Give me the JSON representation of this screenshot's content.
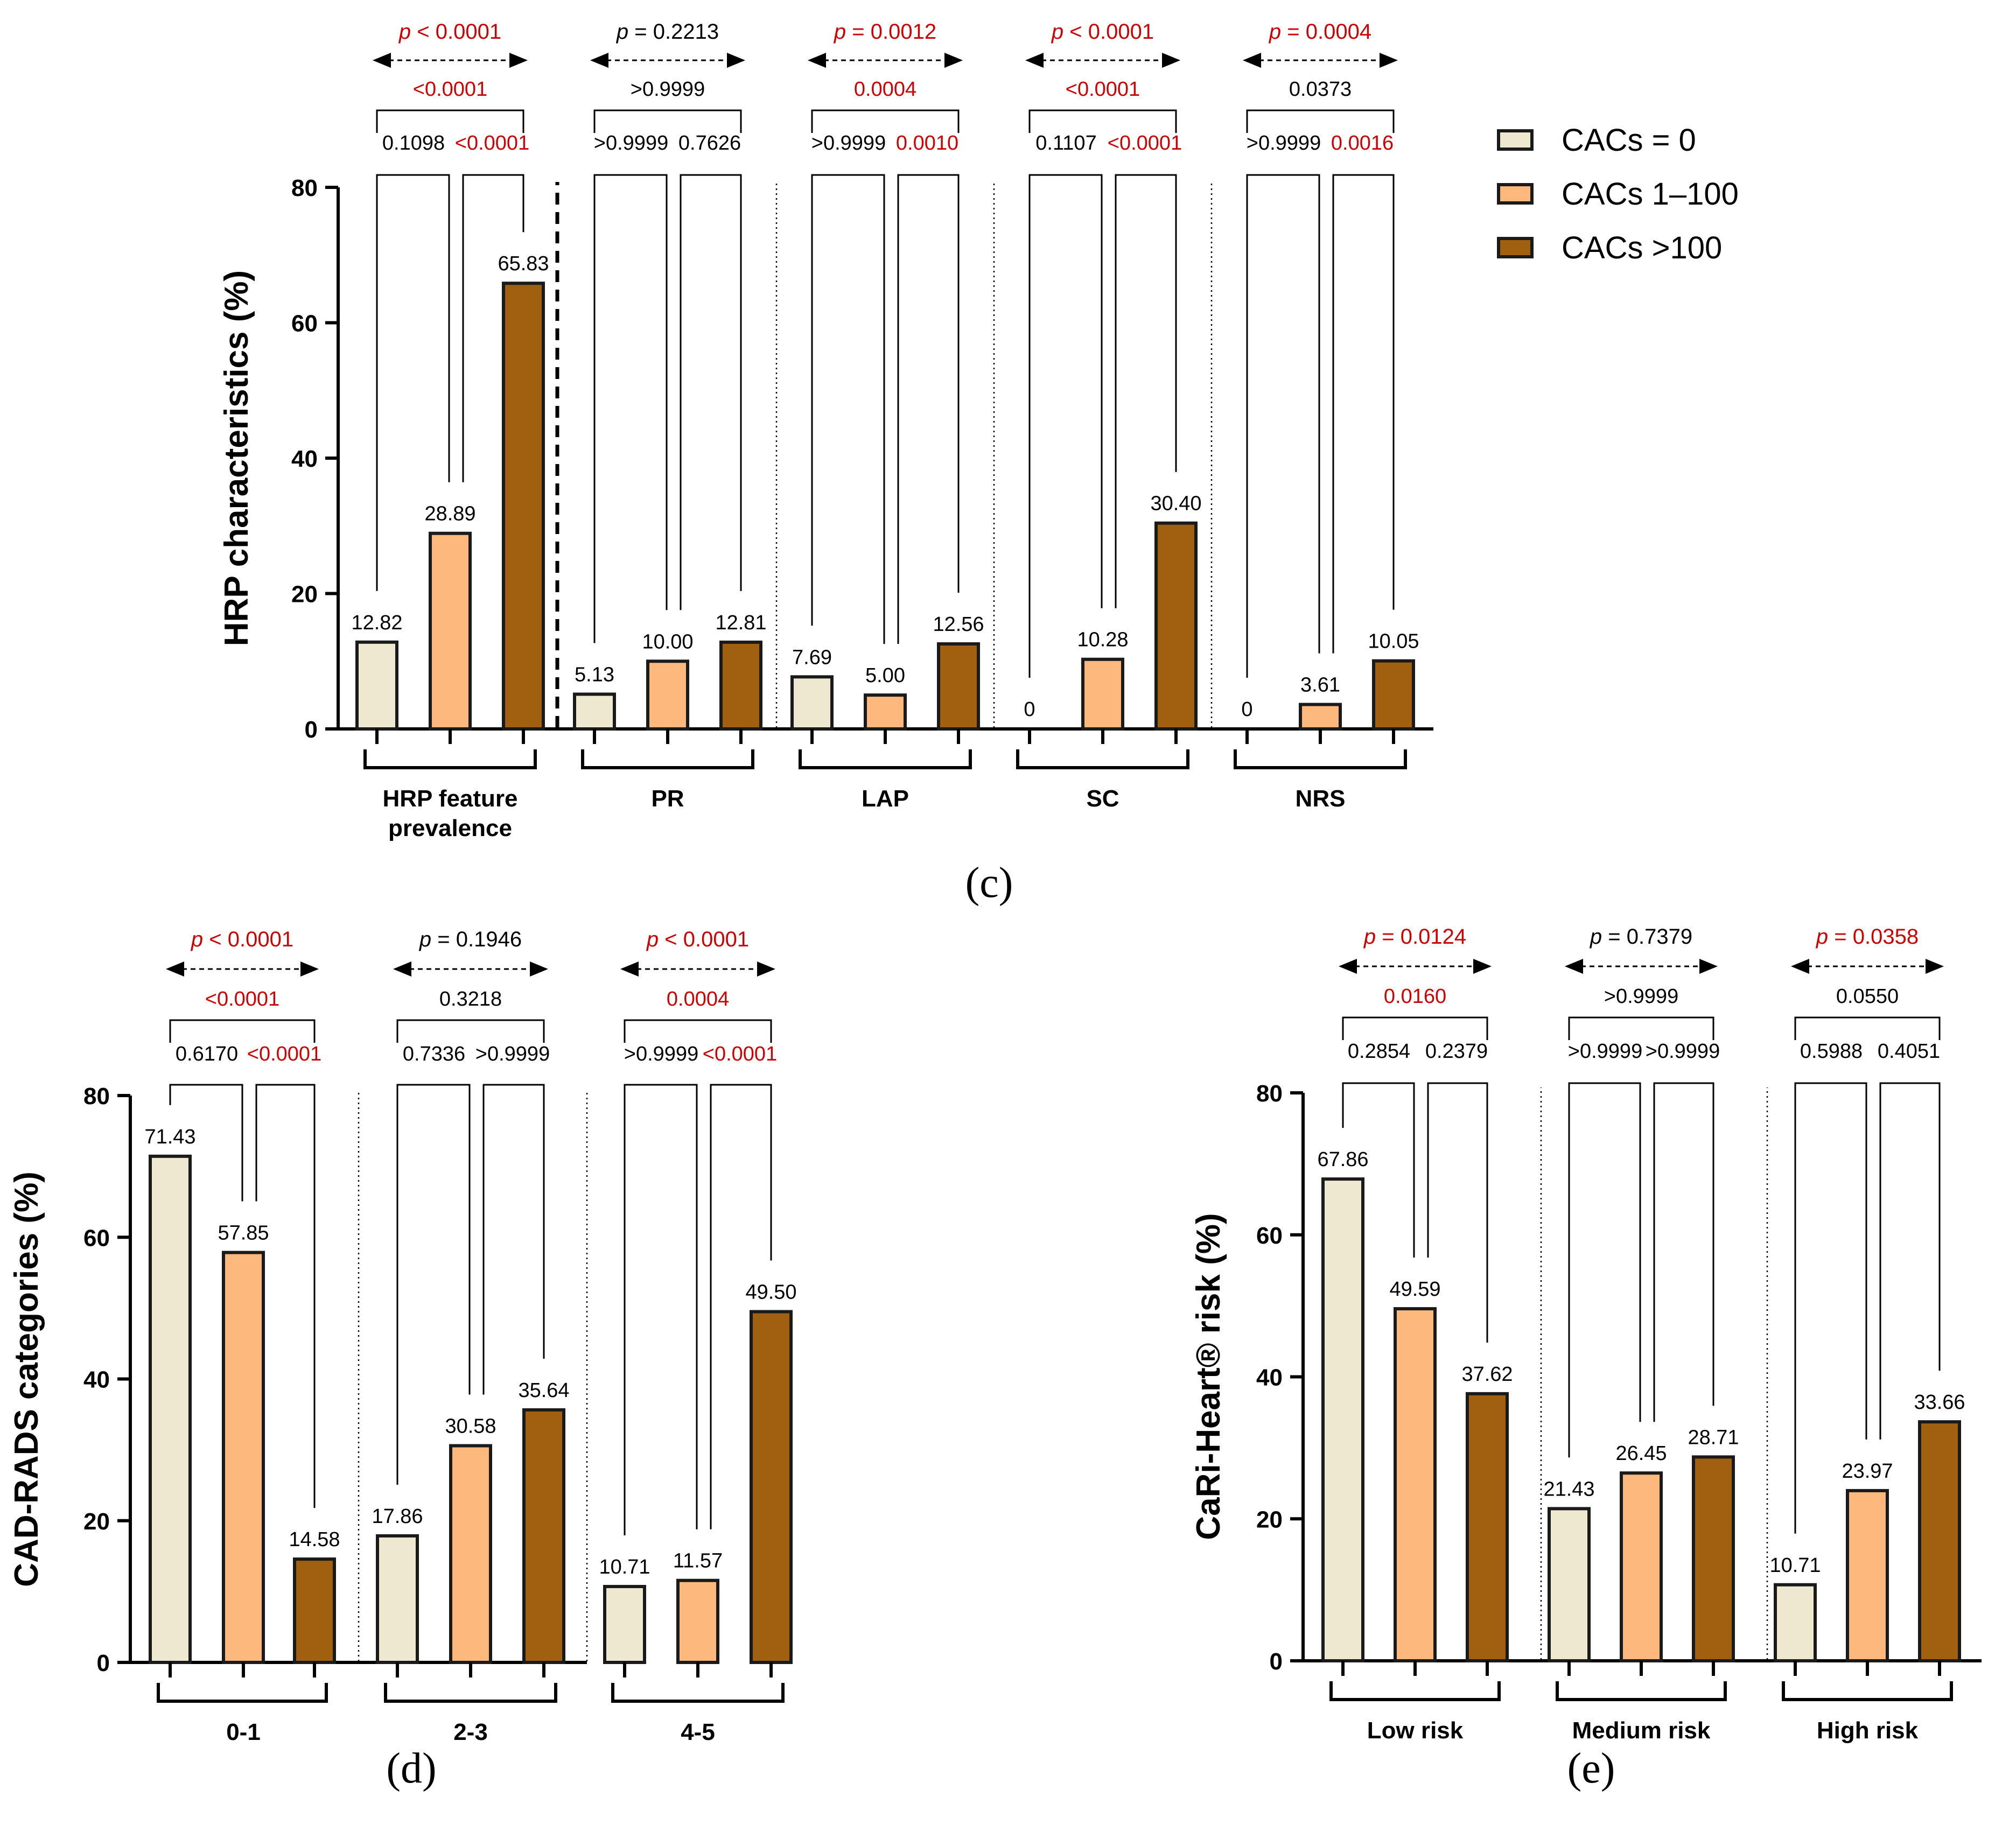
{
  "colors": {
    "cacs0": "#EDE8CF",
    "cacs1_100": "#FDB97D",
    "cacs100": "#A0600F",
    "significant": "#CC0000",
    "text": "#000000"
  },
  "legend": [
    {
      "label": "CACs = 0",
      "color_key": "cacs0"
    },
    {
      "label": "CACs 1–100",
      "color_key": "cacs1_100"
    },
    {
      "label": "CACs >100",
      "color_key": "cacs100"
    }
  ],
  "panel_labels": {
    "c": "(c)",
    "d": "(d)",
    "e": "(e)"
  },
  "chart_data": [
    {
      "id": "c",
      "type": "bar",
      "ylabel": "HRP characteristics (%)",
      "ylim": [
        0,
        80
      ],
      "yticks": [
        "0",
        "20",
        "40",
        "60",
        "80"
      ],
      "series_names": [
        "CACs = 0",
        "CACs 1–100",
        "CACs >100"
      ],
      "groups": [
        {
          "label": [
            "HRP feature",
            "prevalence"
          ],
          "values": [
            12.82,
            28.89,
            65.83
          ],
          "value_labels": [
            "12.82",
            "28.89",
            "65.83"
          ],
          "p_overall": {
            "prefix": "p",
            "text": " < 0.0001",
            "sig": true
          },
          "p_13": {
            "text": "<0.0001",
            "sig": true
          },
          "p_12": {
            "text": "0.1098",
            "sig": false
          },
          "p_23": {
            "text": "<0.0001",
            "sig": true
          }
        },
        {
          "label": [
            "PR"
          ],
          "values": [
            5.13,
            10.0,
            12.81
          ],
          "value_labels": [
            "5.13",
            "10.00",
            "12.81"
          ],
          "p_overall": {
            "prefix": "p",
            "text": " = 0.2213",
            "sig": false
          },
          "p_13": {
            "text": ">0.9999",
            "sig": false
          },
          "p_12": {
            "text": ">0.9999",
            "sig": false
          },
          "p_23": {
            "text": "0.7626",
            "sig": false
          }
        },
        {
          "label": [
            "LAP"
          ],
          "values": [
            7.69,
            5.0,
            12.56
          ],
          "value_labels": [
            "7.69",
            "5.00",
            "12.56"
          ],
          "p_overall": {
            "prefix": "p",
            "text": " = 0.0012",
            "sig": true
          },
          "p_13": {
            "text": "0.0004",
            "sig": true
          },
          "p_12": {
            "text": ">0.9999",
            "sig": false
          },
          "p_23": {
            "text": "0.0010",
            "sig": true
          }
        },
        {
          "label": [
            "SC"
          ],
          "values": [
            0,
            10.28,
            30.4
          ],
          "value_labels": [
            "0",
            "10.28",
            "30.40"
          ],
          "p_overall": {
            "prefix": "p",
            "text": " < 0.0001",
            "sig": true
          },
          "p_13": {
            "text": "<0.0001",
            "sig": true
          },
          "p_12": {
            "text": "0.1107",
            "sig": false
          },
          "p_23": {
            "text": "<0.0001",
            "sig": true
          }
        },
        {
          "label": [
            "NRS"
          ],
          "values": [
            0,
            3.61,
            10.05
          ],
          "value_labels": [
            "0",
            "3.61",
            "10.05"
          ],
          "p_overall": {
            "prefix": "p",
            "text": " = 0.0004",
            "sig": true
          },
          "p_13": {
            "text": "0.0373",
            "sig": false
          },
          "p_12": {
            "text": ">0.9999",
            "sig": false
          },
          "p_23": {
            "text": "0.0016",
            "sig": true
          }
        }
      ]
    },
    {
      "id": "d",
      "type": "bar",
      "ylabel": "CAD-RADS categories (%)",
      "ylim": [
        0,
        80
      ],
      "yticks": [
        "0",
        "20",
        "40",
        "60",
        "80"
      ],
      "series_names": [
        "CACs = 0",
        "CACs 1–100",
        "CACs >100"
      ],
      "groups": [
        {
          "label": [
            "0-1"
          ],
          "values": [
            71.43,
            57.85,
            14.58
          ],
          "value_labels": [
            "71.43",
            "57.85",
            "14.58"
          ],
          "p_overall": {
            "prefix": "p",
            "text": " < 0.0001",
            "sig": true
          },
          "p_13": {
            "text": "<0.0001",
            "sig": true
          },
          "p_12": {
            "text": "0.6170",
            "sig": false
          },
          "p_23": {
            "text": "<0.0001",
            "sig": true
          }
        },
        {
          "label": [
            "2-3"
          ],
          "values": [
            17.86,
            30.58,
            35.64
          ],
          "value_labels": [
            "17.86",
            "30.58",
            "35.64"
          ],
          "p_overall": {
            "prefix": "p",
            "text": " = 0.1946",
            "sig": false
          },
          "p_13": {
            "text": "0.3218",
            "sig": false
          },
          "p_12": {
            "text": "0.7336",
            "sig": false
          },
          "p_23": {
            "text": ">0.9999",
            "sig": false
          }
        },
        {
          "label": [
            "4-5"
          ],
          "values": [
            10.71,
            11.57,
            49.5
          ],
          "value_labels": [
            "10.71",
            "11.57",
            "49.50"
          ],
          "p_overall": {
            "prefix": "p",
            "text": " < 0.0001",
            "sig": true
          },
          "p_13": {
            "text": "0.0004",
            "sig": true
          },
          "p_12": {
            "text": ">0.9999",
            "sig": false
          },
          "p_23": {
            "text": "<0.0001",
            "sig": true
          }
        }
      ]
    },
    {
      "id": "e",
      "type": "bar",
      "ylabel": "CaRi-Heart® risk (%)",
      "ylim": [
        0,
        80
      ],
      "yticks": [
        "0",
        "20",
        "40",
        "60",
        "80"
      ],
      "series_names": [
        "CACs = 0",
        "CACs 1–100",
        "CACs >100"
      ],
      "groups": [
        {
          "label": [
            "Low risk"
          ],
          "values": [
            67.86,
            49.59,
            37.62
          ],
          "value_labels": [
            "67.86",
            "49.59",
            "37.62"
          ],
          "p_overall": {
            "prefix": "p",
            "text": " = 0.0124",
            "sig": true
          },
          "p_13": {
            "text": "0.0160",
            "sig": true
          },
          "p_12": {
            "text": "0.2854",
            "sig": false
          },
          "p_23": {
            "text": "0.2379",
            "sig": false
          }
        },
        {
          "label": [
            "Medium risk"
          ],
          "values": [
            21.43,
            26.45,
            28.71
          ],
          "value_labels": [
            "21.43",
            "26.45",
            "28.71"
          ],
          "p_overall": {
            "prefix": "p",
            "text": " = 0.7379",
            "sig": false
          },
          "p_13": {
            "text": ">0.9999",
            "sig": false
          },
          "p_12": {
            "text": ">0.9999",
            "sig": false
          },
          "p_23": {
            "text": ">0.9999",
            "sig": false
          }
        },
        {
          "label": [
            "High risk"
          ],
          "values": [
            10.71,
            23.97,
            33.66
          ],
          "value_labels": [
            "10.71",
            "23.97",
            "33.66"
          ],
          "p_overall": {
            "prefix": "p",
            "text": " = 0.0358",
            "sig": true
          },
          "p_13": {
            "text": "0.0550",
            "sig": false
          },
          "p_12": {
            "text": "0.5988",
            "sig": false
          },
          "p_23": {
            "text": "0.4051",
            "sig": false
          }
        }
      ]
    }
  ]
}
